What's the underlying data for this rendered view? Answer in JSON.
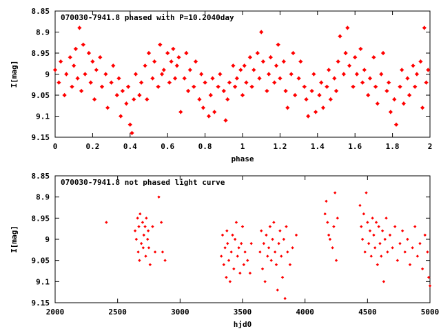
{
  "colors": {
    "points": "#ff0000",
    "axes": "#000000",
    "background": "#ffffff"
  },
  "chart_data": [
    {
      "type": "scatter",
      "title": "070030-7941.8 phased with P=10.2040day",
      "xlabel": "phase",
      "ylabel": "I[mag]",
      "xlim": [
        0,
        2
      ],
      "ylim": [
        8.85,
        9.15
      ],
      "y_inverted": true,
      "grid": false,
      "marker": "star",
      "x_ticks": [
        0,
        0.2,
        0.4,
        0.6,
        0.8,
        1,
        1.2,
        1.4,
        1.6,
        1.8,
        2
      ],
      "x_tick_labels": [
        "0",
        "0.2",
        "0.4",
        "0.6",
        "0.8",
        "1",
        "1.2",
        "1.4",
        "1.6",
        "1.8",
        "2"
      ],
      "y_ticks": [
        8.85,
        8.9,
        8.95,
        9,
        9.05,
        9.1,
        9.15
      ],
      "y_tick_labels": [
        "8.85",
        "8.9",
        "8.95",
        "9",
        "9.05",
        "9.1",
        "9.15"
      ],
      "points": [
        [
          0.0,
          8.99
        ],
        [
          0.02,
          9.02
        ],
        [
          0.03,
          8.97
        ],
        [
          0.05,
          9.05
        ],
        [
          0.06,
          9.0
        ],
        [
          0.08,
          8.96
        ],
        [
          0.09,
          9.03
        ],
        [
          0.1,
          8.98
        ],
        [
          0.11,
          8.94
        ],
        [
          0.12,
          9.01
        ],
        [
          0.13,
          8.89
        ],
        [
          0.14,
          9.04
        ],
        [
          0.15,
          8.93
        ],
        [
          0.16,
          9.0
        ],
        [
          0.18,
          8.95
        ],
        [
          0.19,
          9.02
        ],
        [
          0.2,
          8.97
        ],
        [
          0.21,
          9.06
        ],
        [
          0.22,
          8.99
        ],
        [
          0.24,
          8.96
        ],
        [
          0.25,
          9.03
        ],
        [
          0.27,
          9.0
        ],
        [
          0.28,
          9.08
        ],
        [
          0.3,
          9.02
        ],
        [
          0.31,
          8.98
        ],
        [
          0.33,
          9.05
        ],
        [
          0.34,
          9.01
        ],
        [
          0.35,
          9.1
        ],
        [
          0.36,
          9.04
        ],
        [
          0.38,
          9.07
        ],
        [
          0.39,
          9.03
        ],
        [
          0.4,
          9.12
        ],
        [
          0.41,
          9.14
        ],
        [
          0.42,
          9.06
        ],
        [
          0.43,
          9.0
        ],
        [
          0.45,
          9.05
        ],
        [
          0.46,
          9.02
        ],
        [
          0.48,
          8.98
        ],
        [
          0.49,
          9.06
        ],
        [
          0.5,
          8.95
        ],
        [
          0.52,
          9.01
        ],
        [
          0.53,
          8.97
        ],
        [
          0.55,
          9.03
        ],
        [
          0.56,
          8.93
        ],
        [
          0.57,
          9.0
        ],
        [
          0.58,
          8.99
        ],
        [
          0.6,
          8.95
        ],
        [
          0.61,
          9.02
        ],
        [
          0.62,
          8.97
        ],
        [
          0.63,
          8.94
        ],
        [
          0.64,
          9.01
        ],
        [
          0.65,
          8.98
        ],
        [
          0.66,
          8.96
        ],
        [
          0.67,
          9.09
        ],
        [
          0.69,
          9.01
        ],
        [
          0.7,
          8.95
        ],
        [
          0.71,
          9.04
        ],
        [
          0.72,
          8.99
        ],
        [
          0.74,
          9.03
        ],
        [
          0.75,
          8.97
        ],
        [
          0.77,
          9.06
        ],
        [
          0.78,
          9.0
        ],
        [
          0.79,
          9.08
        ],
        [
          0.8,
          9.02
        ],
        [
          0.82,
          9.1
        ],
        [
          0.83,
          9.05
        ],
        [
          0.84,
          9.01
        ],
        [
          0.85,
          9.09
        ],
        [
          0.87,
          9.03
        ],
        [
          0.88,
          9.0
        ],
        [
          0.9,
          9.04
        ],
        [
          0.91,
          9.11
        ],
        [
          0.92,
          9.06
        ],
        [
          0.93,
          9.02
        ],
        [
          0.95,
          8.98
        ],
        [
          0.96,
          9.03
        ],
        [
          0.97,
          9.01
        ],
        [
          0.99,
          8.99
        ],
        [
          1.0,
          9.05
        ],
        [
          1.01,
          8.98
        ],
        [
          1.02,
          9.02
        ],
        [
          1.04,
          8.96
        ],
        [
          1.05,
          9.03
        ],
        [
          1.06,
          8.99
        ],
        [
          1.08,
          8.95
        ],
        [
          1.09,
          9.01
        ],
        [
          1.1,
          8.9
        ],
        [
          1.11,
          8.97
        ],
        [
          1.13,
          9.04
        ],
        [
          1.14,
          9.0
        ],
        [
          1.15,
          8.96
        ],
        [
          1.17,
          9.02
        ],
        [
          1.18,
          8.98
        ],
        [
          1.19,
          8.93
        ],
        [
          1.2,
          9.01
        ],
        [
          1.22,
          8.97
        ],
        [
          1.23,
          9.04
        ],
        [
          1.24,
          9.08
        ],
        [
          1.26,
          9.0
        ],
        [
          1.27,
          8.95
        ],
        [
          1.28,
          9.05
        ],
        [
          1.3,
          9.01
        ],
        [
          1.31,
          8.97
        ],
        [
          1.33,
          9.03
        ],
        [
          1.34,
          9.06
        ],
        [
          1.35,
          9.1
        ],
        [
          1.37,
          9.04
        ],
        [
          1.38,
          9.0
        ],
        [
          1.39,
          9.09
        ],
        [
          1.41,
          9.05
        ],
        [
          1.42,
          9.02
        ],
        [
          1.43,
          9.08
        ],
        [
          1.45,
          9.03
        ],
        [
          1.46,
          8.99
        ],
        [
          1.47,
          9.06
        ],
        [
          1.49,
          9.01
        ],
        [
          1.5,
          9.04
        ],
        [
          1.51,
          8.97
        ],
        [
          1.52,
          8.91
        ],
        [
          1.54,
          9.0
        ],
        [
          1.55,
          8.95
        ],
        [
          1.56,
          8.89
        ],
        [
          1.57,
          8.98
        ],
        [
          1.59,
          9.03
        ],
        [
          1.6,
          8.96
        ],
        [
          1.61,
          9.0
        ],
        [
          1.63,
          8.94
        ],
        [
          1.64,
          9.02
        ],
        [
          1.65,
          8.99
        ],
        [
          1.67,
          9.05
        ],
        [
          1.68,
          9.01
        ],
        [
          1.7,
          8.96
        ],
        [
          1.71,
          9.03
        ],
        [
          1.72,
          9.07
        ],
        [
          1.74,
          9.0
        ],
        [
          1.75,
          8.95
        ],
        [
          1.77,
          9.04
        ],
        [
          1.78,
          9.02
        ],
        [
          1.79,
          9.09
        ],
        [
          1.81,
          9.06
        ],
        [
          1.82,
          9.12
        ],
        [
          1.84,
          9.03
        ],
        [
          1.85,
          8.99
        ],
        [
          1.86,
          9.07
        ],
        [
          1.88,
          9.01
        ],
        [
          1.89,
          9.05
        ],
        [
          1.91,
          8.98
        ],
        [
          1.92,
          9.03
        ],
        [
          1.93,
          9.0
        ],
        [
          1.95,
          8.97
        ],
        [
          1.96,
          9.08
        ],
        [
          1.97,
          8.89
        ],
        [
          1.98,
          9.02
        ],
        [
          1.99,
          8.99
        ]
      ]
    },
    {
      "type": "scatter",
      "title": "070030-7941.8 not phased light curve",
      "xlabel": "hjd0",
      "ylabel": "I[mag]",
      "xlim": [
        2000,
        5000
      ],
      "ylim": [
        8.85,
        9.15
      ],
      "y_inverted": true,
      "grid": false,
      "marker": "diamond",
      "x_ticks": [
        2000,
        2500,
        3000,
        3500,
        4000,
        4500,
        5000
      ],
      "x_tick_labels": [
        "2000",
        "2500",
        "3000",
        "3500",
        "4000",
        "4500",
        "5000"
      ],
      "y_ticks": [
        8.85,
        8.9,
        8.95,
        9,
        9.05,
        9.1,
        9.15
      ],
      "y_tick_labels": [
        "8.85",
        "8.9",
        "8.95",
        "9",
        "9.05",
        "9.1",
        "9.15"
      ],
      "points": [
        [
          2410,
          8.96
        ],
        [
          2640,
          8.98
        ],
        [
          2650,
          9.0
        ],
        [
          2660,
          8.95
        ],
        [
          2665,
          9.03
        ],
        [
          2670,
          8.97
        ],
        [
          2675,
          9.05
        ],
        [
          2680,
          8.94
        ],
        [
          2690,
          9.01
        ],
        [
          2700,
          8.96
        ],
        [
          2705,
          9.02
        ],
        [
          2710,
          8.99
        ],
        [
          2720,
          8.97
        ],
        [
          2725,
          9.04
        ],
        [
          2730,
          8.95
        ],
        [
          2740,
          9.0
        ],
        [
          2745,
          8.98
        ],
        [
          2750,
          9.02
        ],
        [
          2760,
          9.06
        ],
        [
          2780,
          8.97
        ],
        [
          2800,
          9.03
        ],
        [
          2830,
          8.9
        ],
        [
          2850,
          8.96
        ],
        [
          2860,
          9.03
        ],
        [
          2880,
          9.05
        ],
        [
          3330,
          9.04
        ],
        [
          3340,
          8.99
        ],
        [
          3350,
          9.06
        ],
        [
          3360,
          9.02
        ],
        [
          3370,
          9.09
        ],
        [
          3375,
          8.98
        ],
        [
          3380,
          9.01
        ],
        [
          3390,
          9.05
        ],
        [
          3400,
          9.1
        ],
        [
          3410,
          9.03
        ],
        [
          3420,
          8.99
        ],
        [
          3430,
          9.07
        ],
        [
          3440,
          9.0
        ],
        [
          3450,
          8.96
        ],
        [
          3460,
          9.04
        ],
        [
          3470,
          9.02
        ],
        [
          3480,
          9.08
        ],
        [
          3490,
          9.01
        ],
        [
          3500,
          8.97
        ],
        [
          3510,
          9.06
        ],
        [
          3520,
          9.03
        ],
        [
          3540,
          9.05
        ],
        [
          3560,
          9.08
        ],
        [
          3570,
          9.01
        ],
        [
          3640,
          9.03
        ],
        [
          3650,
          8.98
        ],
        [
          3660,
          9.07
        ],
        [
          3670,
          9.01
        ],
        [
          3680,
          9.1
        ],
        [
          3690,
          8.99
        ],
        [
          3700,
          9.04
        ],
        [
          3710,
          9.02
        ],
        [
          3720,
          8.97
        ],
        [
          3730,
          9.05
        ],
        [
          3740,
          9.0
        ],
        [
          3750,
          8.96
        ],
        [
          3760,
          9.03
        ],
        [
          3770,
          9.06
        ],
        [
          3780,
          9.12
        ],
        [
          3790,
          9.01
        ],
        [
          3800,
          8.98
        ],
        [
          3810,
          9.04
        ],
        [
          3820,
          9.09
        ],
        [
          3830,
          9.0
        ],
        [
          3840,
          9.14
        ],
        [
          3850,
          8.97
        ],
        [
          3860,
          9.03
        ],
        [
          3880,
          9.06
        ],
        [
          3900,
          9.02
        ],
        [
          3930,
          8.99
        ],
        [
          4160,
          8.94
        ],
        [
          4170,
          8.91
        ],
        [
          4180,
          8.96
        ],
        [
          4190,
          8.99
        ],
        [
          4200,
          9.0
        ],
        [
          4220,
          9.02
        ],
        [
          4230,
          8.97
        ],
        [
          4240,
          8.89
        ],
        [
          4250,
          9.05
        ],
        [
          4260,
          8.95
        ],
        [
          4440,
          8.92
        ],
        [
          4450,
          8.97
        ],
        [
          4460,
          9.0
        ],
        [
          4470,
          8.94
        ],
        [
          4480,
          9.03
        ],
        [
          4490,
          8.89
        ],
        [
          4500,
          8.96
        ],
        [
          4510,
          9.01
        ],
        [
          4520,
          8.98
        ],
        [
          4530,
          9.04
        ],
        [
          4540,
          8.95
        ],
        [
          4550,
          8.99
        ],
        [
          4560,
          9.02
        ],
        [
          4570,
          8.96
        ],
        [
          4580,
          9.06
        ],
        [
          4590,
          8.97
        ],
        [
          4600,
          9.01
        ],
        [
          4610,
          9.04
        ],
        [
          4620,
          8.98
        ],
        [
          4630,
          9.1
        ],
        [
          4640,
          9.0
        ],
        [
          4650,
          8.95
        ],
        [
          4660,
          9.03
        ],
        [
          4680,
          8.99
        ],
        [
          4700,
          9.02
        ],
        [
          4720,
          8.97
        ],
        [
          4740,
          9.05
        ],
        [
          4760,
          9.01
        ],
        [
          4780,
          8.98
        ],
        [
          4800,
          9.03
        ],
        [
          4820,
          9.0
        ],
        [
          4840,
          9.06
        ],
        [
          4860,
          9.02
        ],
        [
          4880,
          8.97
        ],
        [
          4900,
          9.04
        ],
        [
          4920,
          9.01
        ],
        [
          4940,
          9.07
        ],
        [
          4960,
          8.99
        ],
        [
          4980,
          9.03
        ],
        [
          4990,
          9.09
        ],
        [
          5000,
          9.11
        ]
      ]
    }
  ]
}
